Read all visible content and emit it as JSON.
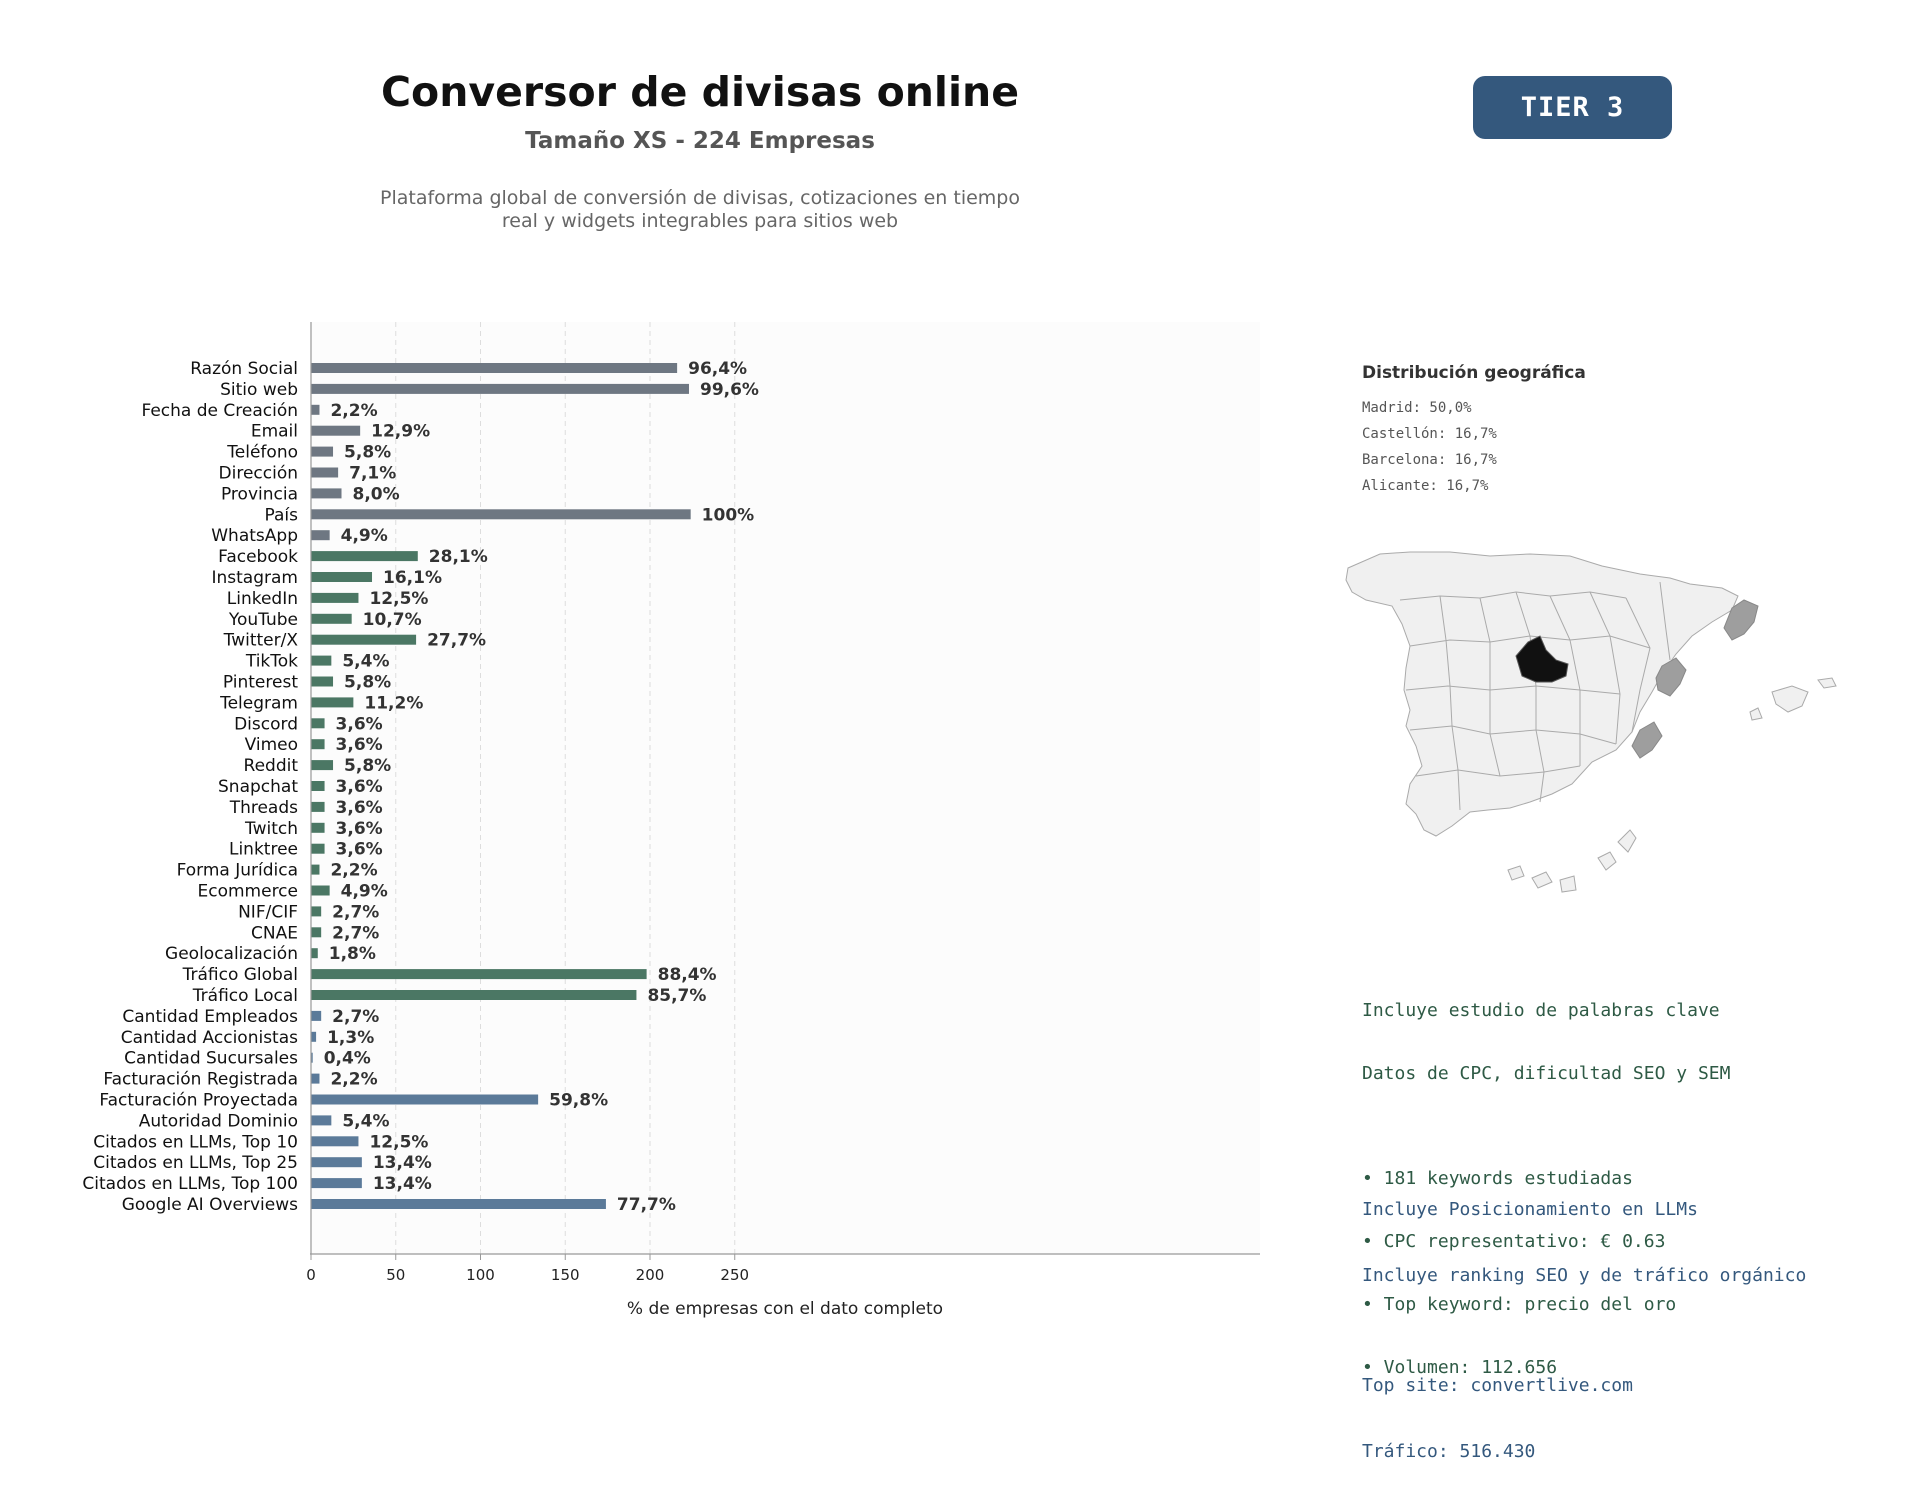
{
  "header": {
    "title": "Conversor de divisas online",
    "subtitle": "Tamaño XS - 224 Empresas",
    "description_lines": [
      "Plataforma global de conversión de divisas, cotizaciones en tiempo",
      "real y widgets integrables para sitios web"
    ],
    "tier_label": "TIER 3"
  },
  "chart_data": {
    "type": "bar",
    "orientation": "horizontal",
    "xlabel": "% de empresas con el dato completo",
    "xlim": [
      0,
      280
    ],
    "xticks": [
      0,
      50,
      100,
      150,
      200,
      250
    ],
    "grid": "vertical dashed",
    "colors": {
      "gray": "#6e7782",
      "green": "#4b7764",
      "blue": "#5b7a99"
    },
    "categories": [
      "Razón Social",
      "Sitio web",
      "Fecha de Creación",
      "Email",
      "Teléfono",
      "Dirección",
      "Provincia",
      "País",
      "WhatsApp",
      "Facebook",
      "Instagram",
      "LinkedIn",
      "YouTube",
      "Twitter/X",
      "TikTok",
      "Pinterest",
      "Telegram",
      "Discord",
      "Vimeo",
      "Reddit",
      "Snapchat",
      "Threads",
      "Twitch",
      "Linktree",
      "Forma Jurídica",
      "Ecommerce",
      "NIF/CIF",
      "CNAE",
      "Geolocalización",
      "Tráfico Global",
      "Tráfico Local",
      "Cantidad Empleados",
      "Cantidad Accionistas",
      "Cantidad Sucursales",
      "Facturación Registrada",
      "Facturación Proyectada",
      "Autoridad Dominio",
      "Citados en LLMs, Top 10",
      "Citados en LLMs, Top 25",
      "Citados en LLMs, Top 100",
      "Google AI Overviews"
    ],
    "values": [
      216,
      223,
      5,
      29,
      13,
      16,
      18,
      224,
      11,
      63,
      36,
      28,
      24,
      62,
      12,
      13,
      25,
      8,
      8,
      13,
      8,
      8,
      8,
      8,
      5,
      11,
      6,
      6,
      4,
      198,
      192,
      6,
      3,
      1,
      5,
      134,
      12,
      28,
      30,
      30,
      174
    ],
    "labels": [
      "96,4%",
      "99,6%",
      "2,2%",
      "12,9%",
      "5,8%",
      "7,1%",
      "8,0%",
      "100%",
      "4,9%",
      "28,1%",
      "16,1%",
      "12,5%",
      "10,7%",
      "27,7%",
      "5,4%",
      "5,8%",
      "11,2%",
      "3,6%",
      "3,6%",
      "5,8%",
      "3,6%",
      "3,6%",
      "3,6%",
      "3,6%",
      "2,2%",
      "4,9%",
      "2,7%",
      "2,7%",
      "1,8%",
      "88,4%",
      "85,7%",
      "2,7%",
      "1,3%",
      "0,4%",
      "2,2%",
      "59,8%",
      "5,4%",
      "12,5%",
      "13,4%",
      "13,4%",
      "77,7%"
    ],
    "color_groups": [
      "gray",
      "gray",
      "gray",
      "gray",
      "gray",
      "gray",
      "gray",
      "gray",
      "gray",
      "green",
      "green",
      "green",
      "green",
      "green",
      "green",
      "green",
      "green",
      "green",
      "green",
      "green",
      "green",
      "green",
      "green",
      "green",
      "green",
      "green",
      "green",
      "green",
      "green",
      "green",
      "green",
      "blue",
      "blue",
      "blue",
      "blue",
      "blue",
      "blue",
      "blue",
      "blue",
      "blue",
      "blue"
    ]
  },
  "geo": {
    "title": "Distribución geográfica",
    "items": [
      "Madrid: 50,0%",
      "Castellón: 16,7%",
      "Barcelona: 16,7%",
      "Alicante: 16,7%"
    ],
    "colors": {
      "madrid": "#111111",
      "other": "#9e9e9e",
      "base": "#f0f0f0",
      "border": "#aaaaaa"
    }
  },
  "keywords": {
    "lines": [
      "Incluye estudio de palabras clave",
      "Datos de CPC, dificultad SEO y SEM",
      "",
      "• 181 keywords estudiadas",
      "• CPC representativo: € 0.63",
      "• Top keyword: precio del oro",
      "• Volumen: 112.656"
    ]
  },
  "llm": {
    "lines": [
      "Incluye Posicionamiento en LLMs",
      "Incluye ranking SEO y de tráfico orgánico",
      "",
      "Top site: convertlive.com",
      "Tráfico: 516.430"
    ]
  }
}
